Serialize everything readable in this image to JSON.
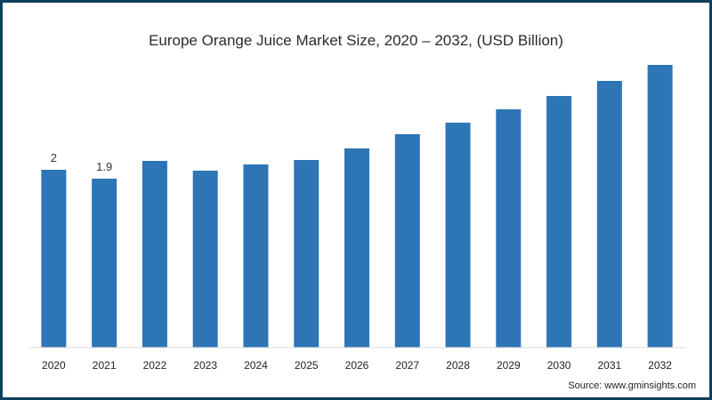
{
  "chart_data": {
    "type": "bar",
    "title": "Europe  Orange Juice Market Size, 2020 – 2032, (USD Billion)",
    "xlabel": "",
    "ylabel": "",
    "categories": [
      "2020",
      "2021",
      "2022",
      "2023",
      "2024",
      "2025",
      "2026",
      "2027",
      "2028",
      "2029",
      "2030",
      "2031",
      "2032"
    ],
    "values": [
      2.0,
      1.9,
      2.1,
      1.99,
      2.06,
      2.11,
      2.24,
      2.4,
      2.53,
      2.68,
      2.83,
      3.0,
      3.18
    ],
    "data_labels": [
      "2",
      "1.9",
      null,
      null,
      null,
      null,
      null,
      null,
      null,
      null,
      null,
      null,
      null
    ],
    "ylim": [
      0,
      3.35
    ],
    "color": "#2e75b6",
    "grid": false,
    "legend": "none"
  },
  "source": "Source: www.gminsights.com"
}
